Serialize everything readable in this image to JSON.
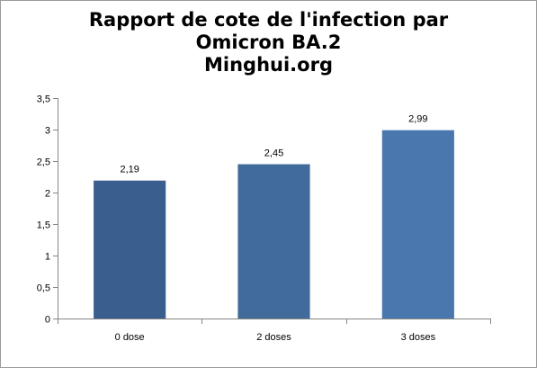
{
  "chart_data": {
    "type": "bar",
    "title_lines": [
      "Rapport de cote de l'infection par",
      "Omicron BA.2",
      "Minghui.org"
    ],
    "categories": [
      "0 dose",
      "2 doses",
      "3 doses"
    ],
    "values": [
      2.19,
      2.45,
      2.99
    ],
    "value_labels": [
      "2,19",
      "2,45",
      "2,99"
    ],
    "ylim": [
      0,
      3.5
    ],
    "yticks": [
      0,
      0.5,
      1,
      1.5,
      2,
      2.5,
      3,
      3.5
    ],
    "ytick_labels": [
      "0",
      "0,5",
      "1",
      "1,5",
      "2",
      "2,5",
      "3",
      "3,5"
    ],
    "xlabel": "",
    "ylabel": "",
    "grid": false,
    "legend": "none",
    "bar_colors": [
      "#3a5f8f",
      "#416b9b",
      "#4a78ae"
    ]
  }
}
